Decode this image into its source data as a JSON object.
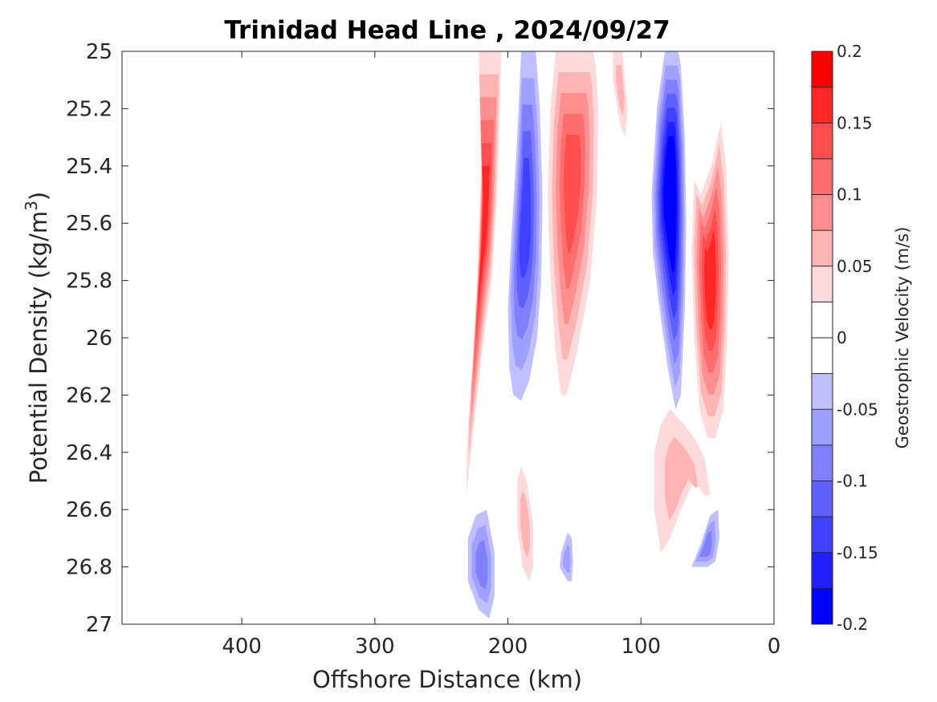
{
  "chart_data": {
    "type": "filled-contour",
    "title": "Trinidad Head Line , 2024/09/27",
    "xlabel": "Offshore Distance (km)",
    "ylabel_main": "Potential Density (kg/m",
    "ylabel_sup": "3",
    "ylabel_end": ")",
    "x_axis": {
      "range": [
        490,
        0
      ],
      "reversed": true,
      "ticks": [
        400,
        300,
        200,
        100,
        0
      ],
      "tick_labels": [
        "400",
        "300",
        "200",
        "100",
        "0"
      ]
    },
    "y_axis": {
      "range": [
        25,
        27
      ],
      "reversed": true,
      "ticks": [
        25,
        25.2,
        25.4,
        25.6,
        25.8,
        26,
        26.2,
        26.4,
        26.6,
        26.8,
        27
      ],
      "tick_labels": [
        "25",
        "25.2",
        "25.4",
        "25.6",
        "25.8",
        "26",
        "26.2",
        "26.4",
        "26.6",
        "26.8",
        "27"
      ]
    },
    "colorbar": {
      "label": "Geostrophic Velocity (m/s)",
      "range": [
        -0.2,
        0.2
      ],
      "ticks": [
        0.2,
        0.15,
        0.1,
        0.05,
        0,
        -0.05,
        -0.1,
        -0.15,
        -0.2
      ],
      "tick_labels": [
        "0.2",
        "0.15",
        "0.1",
        "0.05",
        "0",
        "-0.05",
        "-0.1",
        "-0.15",
        "-0.2"
      ],
      "levels": [
        {
          "lo": -0.2,
          "hi": -0.175,
          "color": "#0000ff"
        },
        {
          "lo": -0.175,
          "hi": -0.15,
          "color": "#2020ff"
        },
        {
          "lo": -0.15,
          "hi": -0.125,
          "color": "#4040ff"
        },
        {
          "lo": -0.125,
          "hi": -0.1,
          "color": "#6060ff"
        },
        {
          "lo": -0.1,
          "hi": -0.075,
          "color": "#8080ff"
        },
        {
          "lo": -0.075,
          "hi": -0.05,
          "color": "#a0a0ff"
        },
        {
          "lo": -0.05,
          "hi": -0.025,
          "color": "#c0c0ff"
        },
        {
          "lo": -0.025,
          "hi": 0,
          "color": "#ffffff"
        },
        {
          "lo": 0,
          "hi": 0.025,
          "color": "#ffffff"
        },
        {
          "lo": 0.025,
          "hi": 0.05,
          "color": "#ffdada"
        },
        {
          "lo": 0.05,
          "hi": 0.075,
          "color": "#ffb4b4"
        },
        {
          "lo": 0.075,
          "hi": 0.1,
          "color": "#ff8e8e"
        },
        {
          "lo": 0.1,
          "hi": 0.125,
          "color": "#ff6e6e"
        },
        {
          "lo": 0.125,
          "hi": 0.15,
          "color": "#ff4e4e"
        },
        {
          "lo": 0.15,
          "hi": 0.175,
          "color": "#ff2626"
        },
        {
          "lo": 0.175,
          "hi": 0.2,
          "color": "#ff0000"
        }
      ]
    },
    "features": [
      {
        "name": "jet-1",
        "sign": 1,
        "max": 0.15,
        "x": [
          222,
          220,
          223,
          228,
          231,
          231,
          229,
          224,
          218,
          212,
          208,
          206,
          205,
          206,
          209,
          213,
          218,
          222
        ],
        "y": [
          25.0,
          25.4,
          25.8,
          26.2,
          26.4,
          26.55,
          26.45,
          26.25,
          26.0,
          25.8,
          25.5,
          25.2,
          25.0,
          25.0,
          25.0,
          25.0,
          25.0,
          25.0
        ]
      },
      {
        "name": "jet-2",
        "sign": -1,
        "max": 0.125,
        "x": [
          190,
          193,
          198,
          200,
          199,
          196,
          190,
          184,
          178,
          175,
          174,
          176,
          179,
          183,
          187,
          190
        ],
        "y": [
          25.0,
          25.3,
          25.7,
          25.9,
          26.1,
          26.2,
          26.22,
          26.15,
          26.0,
          25.8,
          25.5,
          25.2,
          25.0,
          25.0,
          25.0,
          25.0
        ]
      },
      {
        "name": "jet-3",
        "sign": 1,
        "max": 0.125,
        "x": [
          164,
          168,
          170,
          168,
          164,
          160,
          156,
          148,
          138,
          133,
          132,
          134,
          136,
          140,
          150,
          158,
          164
        ],
        "y": [
          25.0,
          25.2,
          25.5,
          25.8,
          26.05,
          26.2,
          26.2,
          26.05,
          25.8,
          25.5,
          25.2,
          25.05,
          25.0,
          25.0,
          25.0,
          25.0,
          25.0
        ]
      },
      {
        "name": "jet-4",
        "sign": -1,
        "max": 0.2,
        "x": [
          82,
          88,
          92,
          91,
          86,
          80,
          74,
          70,
          67,
          66,
          67,
          70,
          72,
          76,
          80,
          82
        ],
        "y": [
          25.0,
          25.2,
          25.5,
          25.7,
          25.9,
          26.1,
          26.25,
          26.2,
          25.9,
          25.6,
          25.3,
          25.05,
          25.0,
          25.0,
          25.0,
          25.0
        ]
      },
      {
        "name": "jet-5",
        "sign": 1,
        "max": 0.15,
        "x": [
          55,
          60,
          62,
          60,
          56,
          50,
          44,
          38,
          35,
          34,
          36,
          40,
          47,
          55
        ],
        "y": [
          25.5,
          25.45,
          25.7,
          26.0,
          26.25,
          26.35,
          26.35,
          26.25,
          26.0,
          25.7,
          25.4,
          25.25,
          25.4,
          25.5
        ]
      },
      {
        "name": "patch-offshore-deep",
        "sign": -1,
        "max": 0.075,
        "x": [
          230,
          224,
          216,
          210,
          210,
          214,
          222,
          230
        ],
        "y": [
          26.7,
          26.62,
          26.6,
          26.75,
          26.9,
          26.98,
          26.95,
          26.85
        ]
      },
      {
        "name": "patch-mid",
        "sign": 1,
        "max": 0.05,
        "x": [
          193,
          190,
          186,
          181,
          181,
          184,
          189,
          193
        ],
        "y": [
          26.5,
          26.45,
          26.5,
          26.65,
          26.8,
          26.85,
          26.8,
          26.65
        ]
      },
      {
        "name": "patch-small",
        "sign": -1,
        "max": 0.05,
        "x": [
          160,
          155,
          152,
          151,
          152,
          155,
          159,
          161
        ],
        "y": [
          26.75,
          26.68,
          26.7,
          26.78,
          26.85,
          26.85,
          26.82,
          26.8
        ]
      },
      {
        "name": "patch-onshore-pos",
        "sign": 1,
        "max": 0.05,
        "x": [
          90,
          85,
          78,
          68,
          60,
          52,
          48,
          52,
          60,
          70,
          78,
          85,
          90
        ],
        "y": [
          26.4,
          26.3,
          26.25,
          26.3,
          26.35,
          26.42,
          26.55,
          26.55,
          26.5,
          26.6,
          26.7,
          26.75,
          26.6
        ]
      },
      {
        "name": "patch-onshore-neg",
        "sign": -1,
        "max": 0.075,
        "x": [
          62,
          55,
          48,
          42,
          41,
          44,
          50,
          58,
          62
        ],
        "y": [
          26.8,
          26.72,
          26.62,
          26.6,
          26.7,
          26.78,
          26.8,
          26.8,
          26.8
        ]
      },
      {
        "name": "patch-near-top",
        "sign": 1,
        "max": 0.05,
        "x": [
          121,
          118,
          114,
          112,
          110,
          112,
          116,
          121
        ],
        "y": [
          25.0,
          25.0,
          25.0,
          25.1,
          25.2,
          25.3,
          25.25,
          25.1
        ]
      }
    ]
  }
}
